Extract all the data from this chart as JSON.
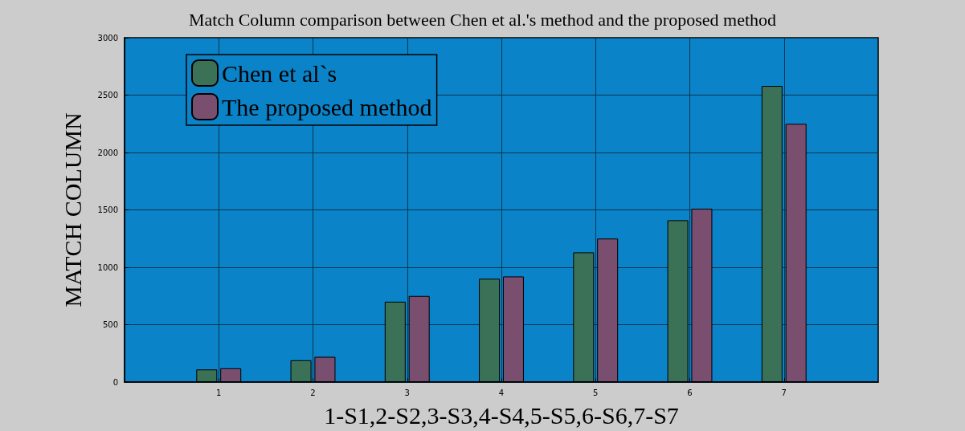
{
  "chart_data": {
    "type": "bar",
    "title": "Match Column comparison between Chen et al.'s method and the proposed method",
    "xlabel": "1-S1,2-S2,3-S3,4-S4,5-S5,6-S6,7-S7",
    "ylabel": "MATCH COLUMN",
    "x": [
      1,
      2,
      3,
      4,
      5,
      6,
      7
    ],
    "series": [
      {
        "name": "Chen et al`s",
        "color": "#3b7157",
        "values": [
          110,
          190,
          700,
          900,
          1130,
          1410,
          2580
        ]
      },
      {
        "name": "The proposed method",
        "color": "#7a4e6f",
        "values": [
          120,
          220,
          750,
          920,
          1250,
          1510,
          2250
        ]
      }
    ],
    "xlim": [
      0,
      8
    ],
    "xticks": [
      1,
      2,
      3,
      4,
      5,
      6,
      7
    ],
    "ylim": [
      0,
      3000
    ],
    "yticks": [
      0,
      500,
      1000,
      1500,
      2000,
      2500,
      3000
    ],
    "grid": true,
    "legend": "top left"
  }
}
